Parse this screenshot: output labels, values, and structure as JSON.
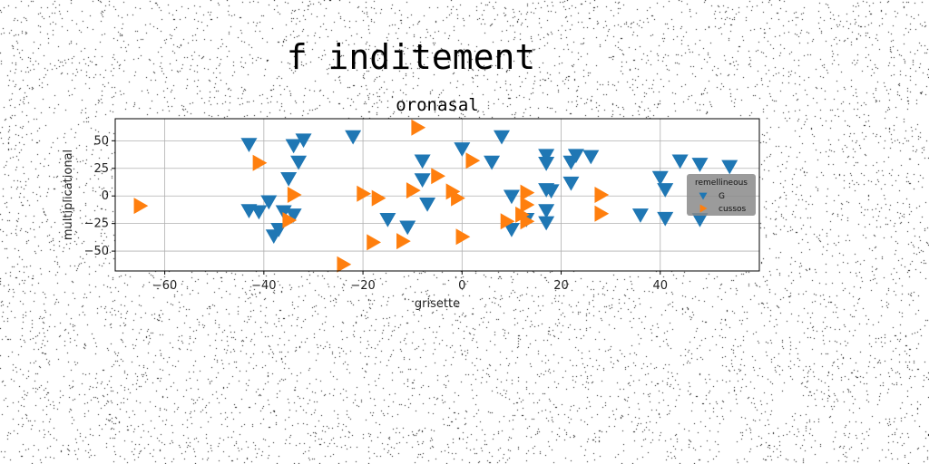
{
  "suptitle": "f inditement",
  "chart_data": {
    "type": "scatter",
    "title": "oronasal",
    "xlabel": "grisette",
    "ylabel": "multiplicational",
    "xlim": [
      -70,
      60
    ],
    "ylim": [
      -68,
      70
    ],
    "xticks": [
      -60,
      -40,
      -20,
      0,
      20,
      40
    ],
    "yticks": [
      -50,
      -25,
      0,
      25,
      50
    ],
    "grid": true,
    "legend": {
      "title": "remellineous",
      "placement": "right"
    },
    "series": [
      {
        "name": "G",
        "color": "#1f77b4",
        "marker": "triangle-down",
        "points": [
          [
            -43,
            47
          ],
          [
            -34,
            46
          ],
          [
            -32,
            51
          ],
          [
            -22,
            54
          ],
          [
            -33,
            31
          ],
          [
            -35,
            16
          ],
          [
            -43,
            -13
          ],
          [
            -41,
            -14
          ],
          [
            -39,
            -5
          ],
          [
            -37,
            -30
          ],
          [
            -38,
            -36
          ],
          [
            -36,
            -14
          ],
          [
            -34,
            -17
          ],
          [
            -15,
            -21
          ],
          [
            -11,
            -28
          ],
          [
            -8,
            32
          ],
          [
            -8,
            15
          ],
          [
            -7,
            -7
          ],
          [
            0,
            43
          ],
          [
            6,
            31
          ],
          [
            8,
            54
          ],
          [
            10,
            0
          ],
          [
            10,
            -30
          ],
          [
            13,
            -21
          ],
          [
            17,
            37
          ],
          [
            17,
            30
          ],
          [
            17,
            6
          ],
          [
            17,
            -13
          ],
          [
            17,
            -24
          ],
          [
            18,
            5
          ],
          [
            22,
            12
          ],
          [
            22,
            31
          ],
          [
            23,
            37
          ],
          [
            26,
            36
          ],
          [
            36,
            -17
          ],
          [
            40,
            17
          ],
          [
            41,
            6
          ],
          [
            41,
            -20
          ],
          [
            44,
            32
          ],
          [
            48,
            29
          ],
          [
            48,
            -21
          ],
          [
            54,
            27
          ]
        ]
      },
      {
        "name": "cussos",
        "color": "#ff7f0e",
        "marker": "triangle-right",
        "points": [
          [
            -65,
            -9
          ],
          [
            -41,
            30
          ],
          [
            -34,
            1
          ],
          [
            -35,
            -22
          ],
          [
            -20,
            2
          ],
          [
            -17,
            -2
          ],
          [
            -18,
            -42
          ],
          [
            -12,
            -41
          ],
          [
            -10,
            5
          ],
          [
            -9,
            62
          ],
          [
            -5,
            18
          ],
          [
            -2,
            4
          ],
          [
            -1,
            -2
          ],
          [
            0,
            -37
          ],
          [
            2,
            32
          ],
          [
            9,
            -23
          ],
          [
            13,
            -23
          ],
          [
            13,
            3
          ],
          [
            13,
            -8
          ],
          [
            12,
            -17
          ],
          [
            28,
            1
          ],
          [
            28,
            -16
          ],
          [
            -24,
            -62
          ]
        ]
      }
    ]
  }
}
